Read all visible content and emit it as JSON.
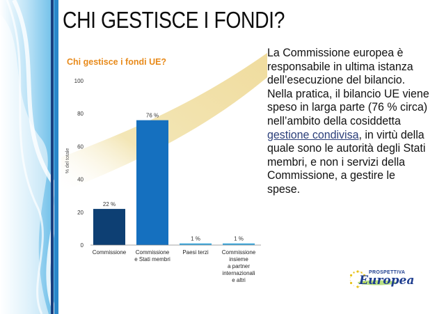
{
  "slide": {
    "title": "CHI GESTISCE I FONDI?",
    "body_parts": [
      "La Commissione europea è responsabile in ultima istanza dell’esecuzione del bilancio. Nella pratica, il bilancio UE viene speso in larga parte (76 % circa) nell’ambito della cosiddetta ",
      "gestione condivisa",
      ", in virtù della quale sono le autorità degli Stati membri, e non i servizi della Commissione, a gestire le spese."
    ]
  },
  "logo": {
    "top_text": "PROSPETTIVA",
    "main_text": "Europea"
  },
  "colors": {
    "sidebar_blue": "#1a6fb5",
    "band_yellow": "#f3e6b6",
    "bar_dark": "#0d3f73",
    "bar_medium": "#1570bf",
    "bar_light": "#3ba7dd",
    "title_orange": "#e88a1a"
  },
  "chart_data": {
    "type": "bar",
    "title": "Chi gestisce i fondi UE?",
    "ylabel": "% del totale",
    "ylim": [
      0,
      100
    ],
    "yticks": [
      0,
      20,
      40,
      60,
      80,
      100
    ],
    "categories": [
      [
        "Commissione"
      ],
      [
        "Commissione",
        "e Stati membri"
      ],
      [
        "Paesi terzi"
      ],
      [
        "Commissione",
        "insieme",
        "a partner",
        "internazionali",
        "e altri"
      ]
    ],
    "values": [
      22,
      76,
      1,
      1
    ],
    "value_labels": [
      "22 %",
      "76 %",
      "1 %",
      "1 %"
    ],
    "bar_colors": [
      "#0d3f73",
      "#1570bf",
      "#3ba7dd",
      "#3ba7dd"
    ]
  }
}
